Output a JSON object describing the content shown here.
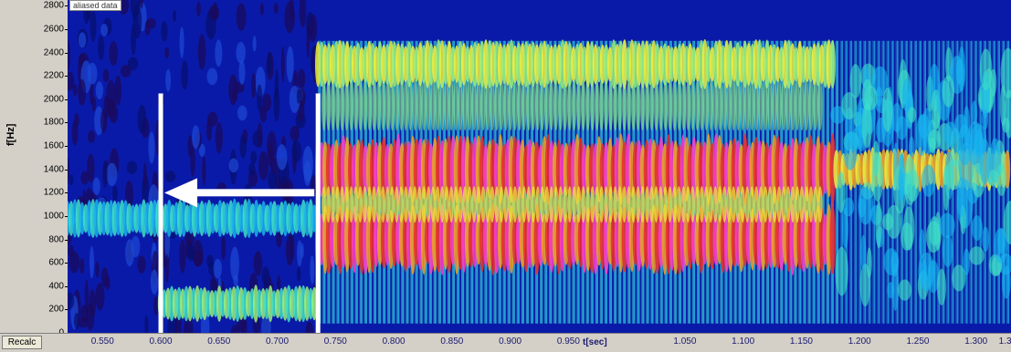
{
  "window": {
    "legend_tag": "aliased data",
    "recalc_label": "Recalc"
  },
  "chart_data": {
    "type": "heatmap",
    "title": "",
    "xlabel": "t[sec]",
    "ylabel": "f[Hz]",
    "xlim": [
      0.52,
      1.33
    ],
    "ylim": [
      0,
      2850
    ],
    "x_ticks": [
      "0.550",
      "0.600",
      "0.650",
      "0.700",
      "0.750",
      "0.800",
      "0.850",
      "0.900",
      "0.950",
      "1.050",
      "1.100",
      "1.150",
      "1.200",
      "1.250",
      "1.300",
      "1.3"
    ],
    "y_ticks": [
      "0",
      "200",
      "400",
      "600",
      "800",
      "1000",
      "1200",
      "1400",
      "1600",
      "1800",
      "2000",
      "2200",
      "2400",
      "2600",
      "2800"
    ],
    "colormap": [
      "#0a1aa8",
      "#1c49d6",
      "#18b4f0",
      "#3fe0c8",
      "#9cf07a",
      "#f2ee3a",
      "#f5a020",
      "#ee2a2a",
      "#ff3cc8"
    ],
    "annotations": {
      "vertical_lines_t": [
        0.6,
        0.735
      ],
      "arrow": {
        "from_t": 0.735,
        "to_t": 0.6,
        "at_f": 1200
      }
    },
    "bands": [
      {
        "t_start": 0.52,
        "t_end": 0.735,
        "f": 980,
        "intensity": "cyan"
      },
      {
        "t_start": 0.6,
        "t_end": 0.735,
        "f": 250,
        "intensity": "green"
      },
      {
        "t_start": 0.735,
        "t_end": 1.18,
        "f": 800,
        "intensity": "magenta-red"
      },
      {
        "t_start": 0.735,
        "t_end": 1.18,
        "f": 1400,
        "intensity": "magenta-red"
      },
      {
        "t_start": 0.735,
        "t_end": 1.18,
        "f": 2300,
        "intensity": "yellow-green"
      },
      {
        "t_start": 1.18,
        "t_end": 1.33,
        "f": 1400,
        "intensity": "yellow"
      }
    ]
  }
}
